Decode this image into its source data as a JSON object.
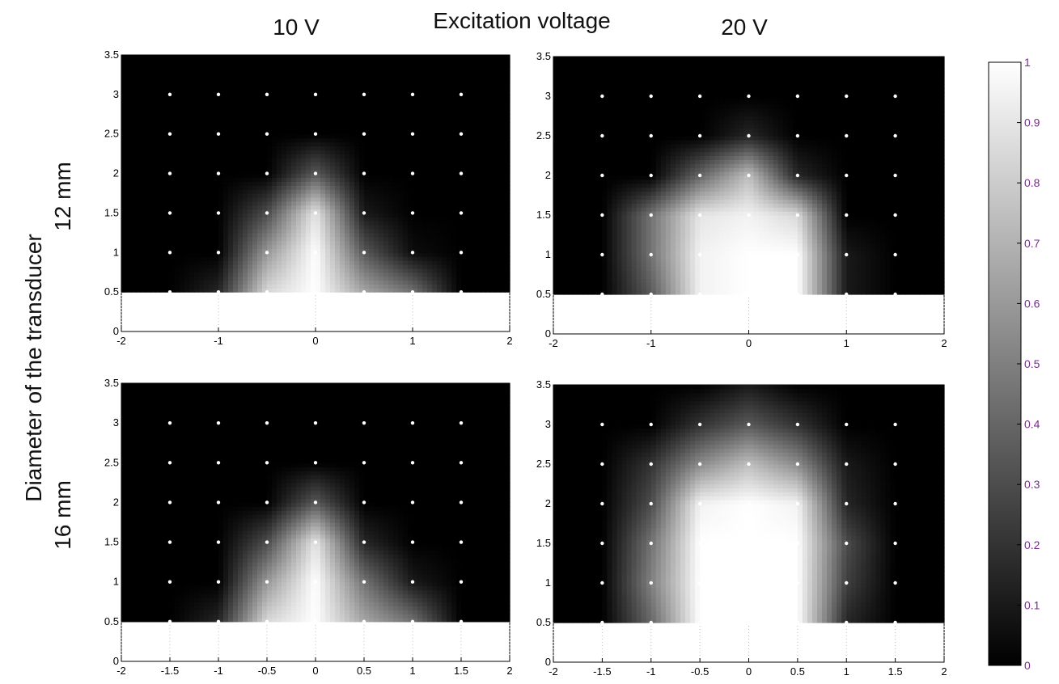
{
  "figure": {
    "title": "Excitation voltage",
    "column_labels": [
      "10 V",
      "20 V"
    ],
    "row_label_common": "Diameter of the transducer",
    "row_labels": [
      "12 mm",
      "16 mm"
    ]
  },
  "chart_data": [
    {
      "type": "heatmap",
      "column": "10 V",
      "row": "12 mm",
      "xlim": [
        -2,
        2
      ],
      "ylim": [
        0,
        3.5
      ],
      "x_ticks": [
        "-2",
        "-1",
        "0",
        "1",
        "2"
      ],
      "y_ticks": [
        "0",
        "0.5",
        "1",
        "1.5",
        "2",
        "2.5",
        "3",
        "3.5"
      ],
      "x": [
        -2,
        -1.5,
        -1,
        -0.5,
        0,
        0.5,
        1,
        1.5,
        2
      ],
      "y": [
        0.5,
        1,
        1.5,
        2,
        2.5,
        3,
        3.5
      ],
      "z": [
        [
          0,
          0,
          0.15,
          0.85,
          1,
          0.65,
          0.45,
          0,
          0
        ],
        [
          0,
          0,
          0,
          0.6,
          1,
          0.35,
          0.05,
          0,
          0
        ],
        [
          0,
          0,
          0,
          0.3,
          0.9,
          0.1,
          0,
          0,
          0
        ],
        [
          0,
          0,
          0,
          0,
          0.35,
          0,
          0,
          0,
          0
        ],
        [
          0,
          0,
          0,
          0,
          0,
          0,
          0,
          0,
          0
        ],
        [
          0,
          0,
          0,
          0,
          0,
          0,
          0,
          0,
          0
        ],
        [
          0,
          0,
          0,
          0,
          0,
          0,
          0,
          0,
          0
        ]
      ]
    },
    {
      "type": "heatmap",
      "column": "20 V",
      "row": "12 mm",
      "xlim": [
        -2,
        2
      ],
      "ylim": [
        0,
        3.5
      ],
      "x_ticks": [
        "-2",
        "-1",
        "0",
        "1",
        "2"
      ],
      "y_ticks": [
        "0",
        "0.5",
        "1",
        "1.5",
        "2",
        "2.5",
        "3",
        "3.5"
      ],
      "x": [
        -2,
        -1.5,
        -1,
        -0.5,
        0,
        0.5,
        1,
        1.5,
        2
      ],
      "y": [
        0.5,
        1,
        1.5,
        2,
        2.5,
        3,
        3.5
      ],
      "z": [
        [
          0,
          0,
          0.35,
          0.95,
          1,
          1,
          0.1,
          0,
          0
        ],
        [
          0,
          0,
          0.45,
          0.95,
          1,
          1,
          0.1,
          0,
          0
        ],
        [
          0,
          0,
          0.45,
          0.9,
          0.95,
          0.85,
          0,
          0,
          0
        ],
        [
          0,
          0,
          0,
          0.4,
          0.75,
          0.15,
          0,
          0,
          0
        ],
        [
          0,
          0,
          0,
          0,
          0.15,
          0,
          0,
          0,
          0
        ],
        [
          0,
          0,
          0,
          0,
          0,
          0,
          0,
          0,
          0
        ],
        [
          0,
          0,
          0,
          0,
          0,
          0,
          0,
          0,
          0
        ]
      ]
    },
    {
      "type": "heatmap",
      "column": "10 V",
      "row": "16 mm",
      "xlim": [
        -2,
        2
      ],
      "ylim": [
        0,
        3.5
      ],
      "x_ticks": [
        "-2",
        "-1.5",
        "-1",
        "-0.5",
        "0",
        "0.5",
        "1",
        "1.5",
        "2"
      ],
      "y_ticks": [
        "0",
        "0.5",
        "1",
        "1.5",
        "2",
        "2.5",
        "3",
        "3.5"
      ],
      "x": [
        -2,
        -1.5,
        -1,
        -0.5,
        0,
        0.5,
        1,
        1.5,
        2
      ],
      "y": [
        0.5,
        1,
        1.5,
        2,
        2.5,
        3,
        3.5
      ],
      "z": [
        [
          0,
          0,
          0.15,
          0.85,
          1,
          0.65,
          0.45,
          0,
          0
        ],
        [
          0,
          0,
          0,
          0.6,
          1,
          0.45,
          0.1,
          0,
          0
        ],
        [
          0,
          0,
          0,
          0.3,
          0.9,
          0.15,
          0,
          0,
          0
        ],
        [
          0,
          0,
          0,
          0,
          0.35,
          0,
          0,
          0,
          0
        ],
        [
          0,
          0,
          0,
          0,
          0,
          0,
          0,
          0,
          0
        ],
        [
          0,
          0,
          0,
          0,
          0,
          0,
          0,
          0,
          0
        ],
        [
          0,
          0,
          0,
          0,
          0,
          0,
          0,
          0,
          0
        ]
      ]
    },
    {
      "type": "heatmap",
      "column": "20 V",
      "row": "16 mm",
      "xlim": [
        -2,
        2
      ],
      "ylim": [
        0,
        3.5
      ],
      "x_ticks": [
        "-2",
        "-1.5",
        "-1",
        "-0.5",
        "0",
        "0.5",
        "1",
        "1.5",
        "2"
      ],
      "y_ticks": [
        "0",
        "0.5",
        "1",
        "1.5",
        "2",
        "2.5",
        "3",
        "3.5"
      ],
      "x": [
        -2,
        -1.5,
        -1,
        -0.5,
        0,
        0.5,
        1,
        1.5,
        2
      ],
      "y": [
        0.5,
        1,
        1.5,
        2,
        2.5,
        3,
        3.5
      ],
      "z": [
        [
          0,
          0,
          0.4,
          1,
          1,
          1,
          0.15,
          0,
          0
        ],
        [
          0,
          0,
          0.5,
          1,
          1,
          1,
          0.25,
          0,
          0
        ],
        [
          0,
          0,
          0.45,
          1,
          1,
          1,
          0.3,
          0,
          0
        ],
        [
          0,
          0,
          0.3,
          0.95,
          1,
          0.95,
          0.15,
          0,
          0
        ],
        [
          0,
          0,
          0.2,
          0.55,
          0.75,
          0.55,
          0.1,
          0,
          0
        ],
        [
          0,
          0,
          0,
          0.2,
          0.35,
          0.2,
          0,
          0,
          0
        ],
        [
          0,
          0,
          0,
          0,
          0.1,
          0,
          0,
          0,
          0
        ]
      ]
    }
  ],
  "colorbar": {
    "min": 0,
    "max": 1,
    "ticks": [
      "0",
      "0.1",
      "0.2",
      "0.3",
      "0.4",
      "0.5",
      "0.6",
      "0.7",
      "0.8",
      "0.9",
      "1"
    ],
    "tick_color": "#7a2b8f",
    "colormap": "gray"
  },
  "colors": {
    "background": "#ffffff",
    "marker": "#ffffff",
    "axis": "#000000",
    "grid": "#bdbdbd"
  }
}
